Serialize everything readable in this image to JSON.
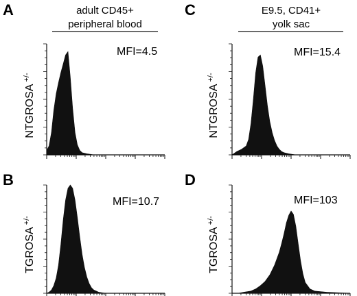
{
  "columns": [
    {
      "title_lines": [
        "adult CD45+",
        "peripheral blood"
      ]
    },
    {
      "title_lines": [
        "E9.5, CD41+",
        "yolk sac"
      ]
    }
  ],
  "panels": [
    {
      "letter": "A",
      "ylabel": "NTGROSA",
      "ylabel_sup": "+/-",
      "mfi": "MFI=4.5"
    },
    {
      "letter": "B",
      "ylabel": "TGROSA",
      "ylabel_sup": "+/-",
      "mfi": "MFI=10.7"
    },
    {
      "letter": "C",
      "ylabel": "NTGROSA",
      "ylabel_sup": "+/-",
      "mfi": "MFI=15.4"
    },
    {
      "letter": "D",
      "ylabel": "TGROSA",
      "ylabel_sup": "+/-",
      "mfi": "MFI=103"
    }
  ],
  "chart_data": [
    {
      "type": "area",
      "title": "",
      "xlabel": "",
      "ylabel": "NTGROSA +/-",
      "annotation": "MFI=4.5",
      "fill": "#111111",
      "grid": false,
      "xlim": [
        0,
        1
      ],
      "ylim": [
        0,
        1
      ],
      "x": [
        0.0,
        0.02,
        0.04,
        0.06,
        0.08,
        0.1,
        0.12,
        0.14,
        0.16,
        0.18,
        0.2,
        0.22,
        0.24,
        0.26,
        0.28,
        0.3,
        0.34,
        0.4,
        0.5,
        0.7,
        1.0
      ],
      "values": [
        0.04,
        0.08,
        0.2,
        0.4,
        0.55,
        0.65,
        0.74,
        0.82,
        0.9,
        0.93,
        0.7,
        0.42,
        0.2,
        0.09,
        0.04,
        0.02,
        0.01,
        0.0,
        0.0,
        0.0,
        0.0
      ]
    },
    {
      "type": "area",
      "title": "",
      "xlabel": "",
      "ylabel": "TGROSA +/-",
      "annotation": "MFI=10.7",
      "fill": "#111111",
      "grid": false,
      "xlim": [
        0,
        1
      ],
      "ylim": [
        0,
        1
      ],
      "x": [
        0.0,
        0.02,
        0.04,
        0.06,
        0.08,
        0.1,
        0.12,
        0.14,
        0.16,
        0.18,
        0.2,
        0.22,
        0.24,
        0.26,
        0.28,
        0.3,
        0.32,
        0.34,
        0.36,
        0.38,
        0.4,
        0.44,
        0.5,
        0.6,
        1.0
      ],
      "values": [
        0.0,
        0.01,
        0.03,
        0.07,
        0.14,
        0.26,
        0.45,
        0.68,
        0.86,
        0.97,
        1.0,
        0.97,
        0.86,
        0.7,
        0.52,
        0.36,
        0.24,
        0.15,
        0.09,
        0.05,
        0.03,
        0.01,
        0.0,
        0.0,
        0.0
      ]
    },
    {
      "type": "area",
      "title": "",
      "xlabel": "",
      "ylabel": "NTGROSA +/-",
      "annotation": "MFI=15.4",
      "fill": "#111111",
      "grid": false,
      "xlim": [
        0,
        1
      ],
      "ylim": [
        0,
        1
      ],
      "x": [
        0.0,
        0.04,
        0.08,
        0.12,
        0.14,
        0.16,
        0.18,
        0.2,
        0.22,
        0.24,
        0.26,
        0.28,
        0.3,
        0.32,
        0.34,
        0.36,
        0.38,
        0.4,
        0.42,
        0.44,
        0.48,
        0.54,
        0.6,
        1.0
      ],
      "values": [
        0.0,
        0.03,
        0.05,
        0.08,
        0.14,
        0.28,
        0.5,
        0.74,
        0.88,
        0.9,
        0.8,
        0.62,
        0.44,
        0.3,
        0.2,
        0.13,
        0.08,
        0.05,
        0.03,
        0.02,
        0.01,
        0.0,
        0.0,
        0.0
      ]
    },
    {
      "type": "area",
      "title": "",
      "xlabel": "",
      "ylabel": "TGROSA +/-",
      "annotation": "MFI=103",
      "fill": "#111111",
      "grid": false,
      "xlim": [
        0,
        1
      ],
      "ylim": [
        0,
        1
      ],
      "x": [
        0.0,
        0.05,
        0.1,
        0.16,
        0.2,
        0.24,
        0.28,
        0.32,
        0.36,
        0.4,
        0.42,
        0.44,
        0.46,
        0.48,
        0.5,
        0.52,
        0.54,
        0.56,
        0.58,
        0.6,
        0.62,
        0.66,
        0.7,
        0.8,
        1.0
      ],
      "values": [
        0.0,
        0.0,
        0.01,
        0.02,
        0.04,
        0.07,
        0.11,
        0.17,
        0.26,
        0.38,
        0.46,
        0.55,
        0.65,
        0.72,
        0.76,
        0.73,
        0.62,
        0.46,
        0.3,
        0.18,
        0.1,
        0.04,
        0.02,
        0.01,
        0.0
      ]
    }
  ]
}
